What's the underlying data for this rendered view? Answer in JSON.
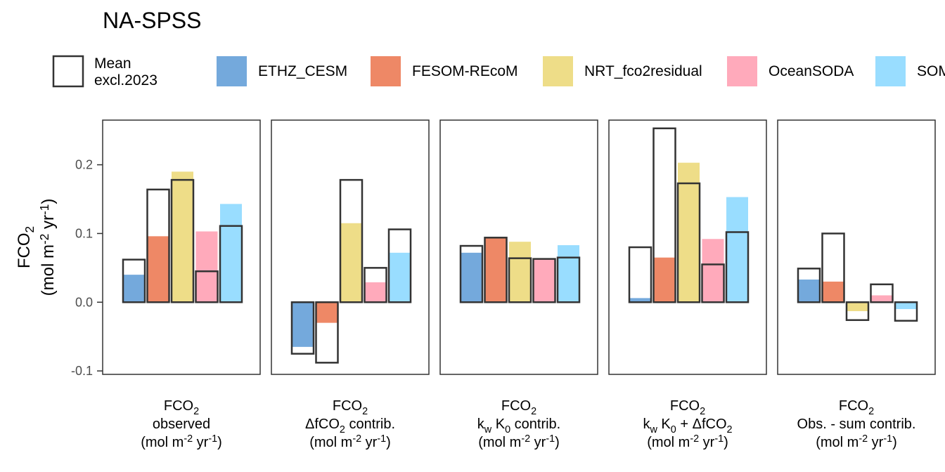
{
  "chart_data": {
    "type": "bar",
    "title": "NA-SPSS",
    "ylabel": {
      "line1": "FCO",
      "line1_sub": "2",
      "line2_pre": "(mol m",
      "line2_sup1": "-2",
      "line2_mid": " yr",
      "line2_sup2": "-1",
      "line2_post": ")"
    },
    "ylim": [
      -0.105,
      0.265
    ],
    "yticks": [
      -0.1,
      0.0,
      0.1,
      0.2
    ],
    "ytick_labels": [
      "-0.1",
      "0.0",
      "0.1",
      "0.2"
    ],
    "grid": false,
    "legend": {
      "placement": "top",
      "outline_label": [
        "Mean",
        "excl.2023"
      ],
      "entries": [
        {
          "name": "ETHZ_CESM",
          "color": "#74a9dc"
        },
        {
          "name": "FESOM-REcoM",
          "color": "#ee8866"
        },
        {
          "name": "NRT_fco2residual",
          "color": "#eedd88"
        },
        {
          "name": "OceanSODA",
          "color": "#ffaabb"
        },
        {
          "name": "SOM-FFN",
          "color": "#99ddff"
        }
      ]
    },
    "models": [
      "ETHZ_CESM",
      "FESOM-REcoM",
      "NRT_fco2residual",
      "OceanSODA",
      "SOM-FFN"
    ],
    "panels": [
      {
        "label": [
          [
            {
              "t": "FCO"
            },
            {
              "t": "2",
              "sub": true
            }
          ],
          [
            {
              "t": "observed"
            }
          ],
          [
            {
              "t": "(mol m"
            },
            {
              "t": "-2",
              "sup": true
            },
            {
              "t": " yr"
            },
            {
              "t": "-1",
              "sup": true
            },
            {
              "t": ")"
            }
          ]
        ],
        "values_2023": [
          0.04,
          0.096,
          0.19,
          0.103,
          0.143
        ],
        "mean_excl_2023": [
          0.062,
          0.164,
          0.178,
          0.045,
          0.111
        ]
      },
      {
        "label": [
          [
            {
              "t": "FCO"
            },
            {
              "t": "2",
              "sub": true
            }
          ],
          [
            {
              "t": "ΔfCO"
            },
            {
              "t": "2",
              "sub": true
            },
            {
              "t": " contrib."
            }
          ],
          [
            {
              "t": "(mol m"
            },
            {
              "t": "-2",
              "sup": true
            },
            {
              "t": " yr"
            },
            {
              "t": "-1",
              "sup": true
            },
            {
              "t": ")"
            }
          ]
        ],
        "values_2023": [
          -0.065,
          -0.03,
          0.115,
          0.029,
          0.072
        ],
        "mean_excl_2023": [
          -0.075,
          -0.088,
          0.178,
          0.05,
          0.106
        ]
      },
      {
        "label": [
          [
            {
              "t": "FCO"
            },
            {
              "t": "2",
              "sub": true
            }
          ],
          [
            {
              "t": "k"
            },
            {
              "t": "w",
              "sub": true
            },
            {
              "t": " K"
            },
            {
              "t": "0",
              "sub": true
            },
            {
              "t": " contrib."
            }
          ],
          [
            {
              "t": "(mol m"
            },
            {
              "t": "-2",
              "sup": true
            },
            {
              "t": " yr"
            },
            {
              "t": "-1",
              "sup": true
            },
            {
              "t": ")"
            }
          ]
        ],
        "values_2023": [
          0.072,
          0.094,
          0.088,
          0.063,
          0.083
        ],
        "mean_excl_2023": [
          0.082,
          0.094,
          0.064,
          0.063,
          0.065
        ]
      },
      {
        "label": [
          [
            {
              "t": "FCO"
            },
            {
              "t": "2",
              "sub": true
            }
          ],
          [
            {
              "t": "k"
            },
            {
              "t": "w",
              "sub": true
            },
            {
              "t": " K"
            },
            {
              "t": "0",
              "sub": true
            },
            {
              "t": " + ΔfCO"
            },
            {
              "t": "2",
              "sub": true
            }
          ],
          [
            {
              "t": "(mol m"
            },
            {
              "t": "-2",
              "sup": true
            },
            {
              "t": " yr"
            },
            {
              "t": "-1",
              "sup": true
            },
            {
              "t": ")"
            }
          ]
        ],
        "values_2023": [
          0.006,
          0.065,
          0.203,
          0.092,
          0.153
        ],
        "mean_excl_2023": [
          0.08,
          0.253,
          0.173,
          0.055,
          0.102
        ]
      },
      {
        "label": [
          [
            {
              "t": "FCO"
            },
            {
              "t": "2",
              "sub": true
            }
          ],
          [
            {
              "t": "Obs. - sum contrib."
            }
          ],
          [
            {
              "t": "(mol m"
            },
            {
              "t": "-2",
              "sup": true
            },
            {
              "t": " yr"
            },
            {
              "t": "-1",
              "sup": true
            },
            {
              "t": ")"
            }
          ]
        ],
        "values_2023": [
          0.033,
          0.03,
          -0.013,
          0.01,
          -0.01
        ],
        "mean_excl_2023": [
          0.049,
          0.1,
          -0.026,
          0.026,
          -0.027
        ]
      }
    ]
  }
}
